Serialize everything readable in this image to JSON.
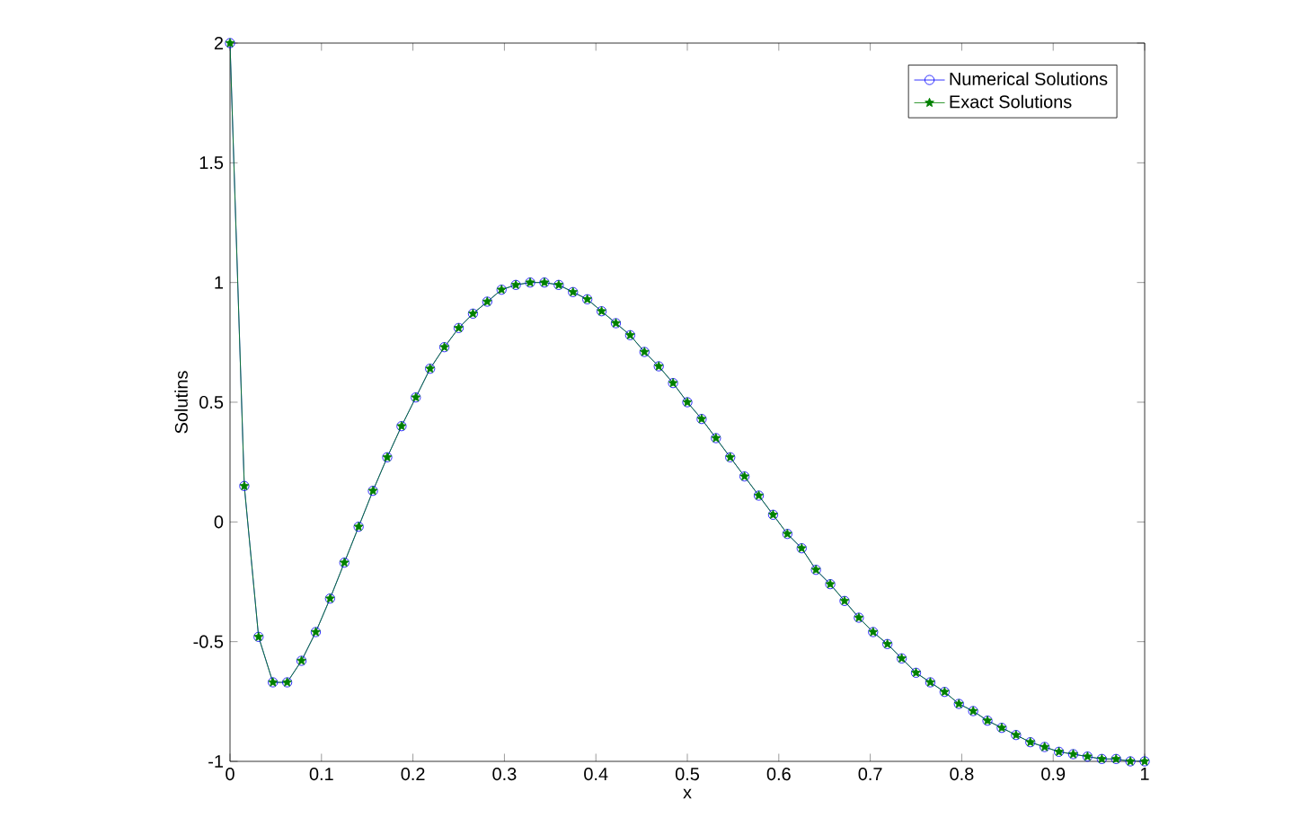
{
  "chart_data": {
    "type": "line",
    "xlabel": "x",
    "ylabel": "Solutins",
    "xlim": [
      0,
      1
    ],
    "ylim": [
      -1,
      2
    ],
    "xticks": [
      0,
      0.1,
      0.2,
      0.3,
      0.4,
      0.5,
      0.6,
      0.7,
      0.8,
      0.9,
      1
    ],
    "yticks": [
      -1,
      -0.5,
      0,
      0.5,
      1,
      1.5,
      2
    ],
    "x": [
      0,
      0.015625,
      0.03125,
      0.046875,
      0.0625,
      0.078125,
      0.09375,
      0.109375,
      0.125,
      0.140625,
      0.15625,
      0.171875,
      0.1875,
      0.203125,
      0.21875,
      0.234375,
      0.25,
      0.265625,
      0.28125,
      0.296875,
      0.3125,
      0.328125,
      0.34375,
      0.359375,
      0.375,
      0.390625,
      0.40625,
      0.421875,
      0.4375,
      0.453125,
      0.46875,
      0.484375,
      0.5,
      0.515625,
      0.53125,
      0.546875,
      0.5625,
      0.578125,
      0.59375,
      0.609375,
      0.625,
      0.640625,
      0.65625,
      0.671875,
      0.6875,
      0.703125,
      0.71875,
      0.734375,
      0.75,
      0.765625,
      0.78125,
      0.796875,
      0.8125,
      0.828125,
      0.84375,
      0.859375,
      0.875,
      0.890625,
      0.90625,
      0.921875,
      0.9375,
      0.953125,
      0.96875,
      0.984375,
      1
    ],
    "series": [
      {
        "name": "Numerical Solutions",
        "color": "#0000ff",
        "marker": "circle",
        "values": [
          2.0,
          0.15,
          -0.48,
          -0.67,
          -0.67,
          -0.58,
          -0.46,
          -0.32,
          -0.17,
          -0.02,
          0.13,
          0.27,
          0.4,
          0.52,
          0.64,
          0.73,
          0.81,
          0.87,
          0.92,
          0.97,
          0.99,
          1.0,
          1.0,
          0.99,
          0.96,
          0.93,
          0.88,
          0.83,
          0.78,
          0.71,
          0.65,
          0.58,
          0.5,
          0.43,
          0.35,
          0.27,
          0.19,
          0.11,
          0.03,
          -0.05,
          -0.11,
          -0.2,
          -0.26,
          -0.33,
          -0.4,
          -0.46,
          -0.51,
          -0.57,
          -0.63,
          -0.67,
          -0.71,
          -0.76,
          -0.79,
          -0.83,
          -0.86,
          -0.89,
          -0.92,
          -0.94,
          -0.96,
          -0.97,
          -0.98,
          -0.99,
          -0.99,
          -1.0,
          -1.0
        ]
      },
      {
        "name": "Exact Solutions",
        "color": "#008000",
        "marker": "star",
        "values": [
          2.0,
          0.15,
          -0.48,
          -0.67,
          -0.67,
          -0.58,
          -0.46,
          -0.32,
          -0.17,
          -0.02,
          0.13,
          0.27,
          0.4,
          0.52,
          0.64,
          0.73,
          0.81,
          0.87,
          0.92,
          0.97,
          0.99,
          1.0,
          1.0,
          0.99,
          0.96,
          0.93,
          0.88,
          0.83,
          0.78,
          0.71,
          0.65,
          0.58,
          0.5,
          0.43,
          0.35,
          0.27,
          0.19,
          0.11,
          0.03,
          -0.05,
          -0.11,
          -0.2,
          -0.26,
          -0.33,
          -0.4,
          -0.46,
          -0.51,
          -0.57,
          -0.63,
          -0.67,
          -0.71,
          -0.76,
          -0.79,
          -0.83,
          -0.86,
          -0.89,
          -0.92,
          -0.94,
          -0.96,
          -0.97,
          -0.98,
          -0.99,
          -0.99,
          -1.0,
          -1.0
        ]
      }
    ],
    "grid": false,
    "legend": "top right"
  }
}
